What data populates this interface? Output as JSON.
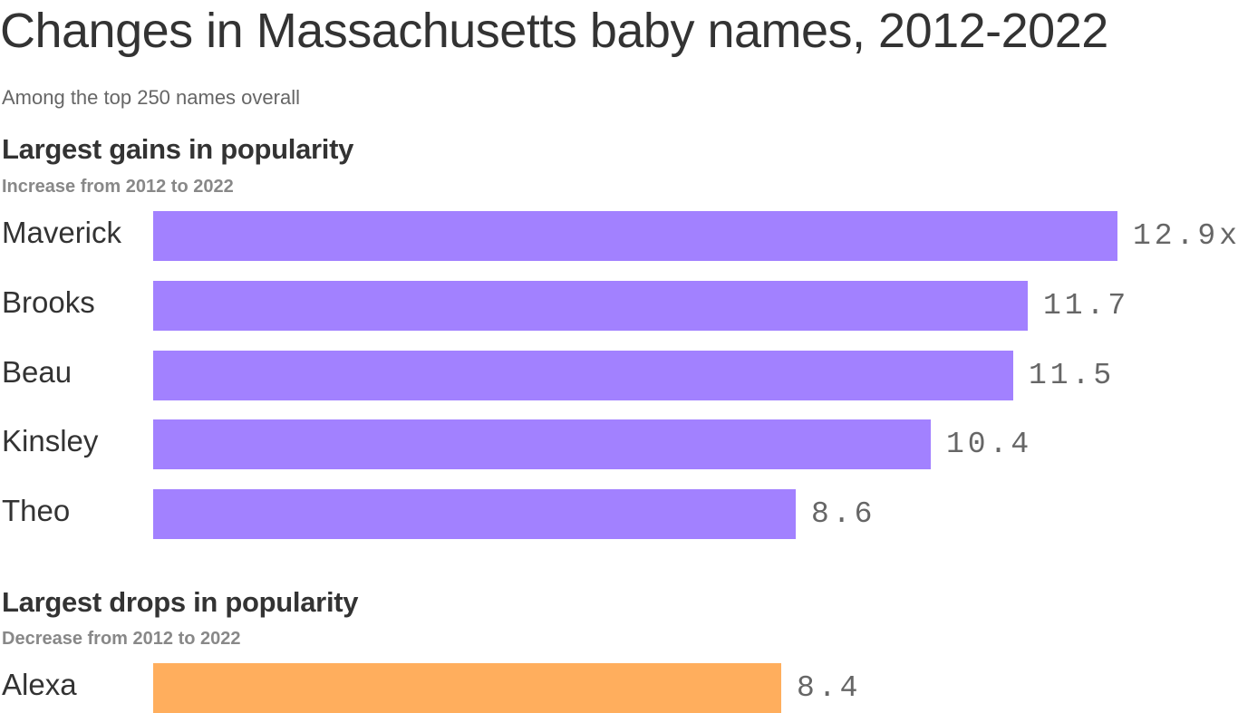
{
  "title": "Changes in Massachusetts baby names, 2012-2022",
  "subtitle": "Among the top 250 names overall",
  "gains": {
    "title": "Largest gains in popularity",
    "subtitle": "Increase from 2012 to 2022",
    "color": "#a281ff",
    "rows": [
      {
        "name": "Maverick",
        "value": 12.9,
        "label": "12.9x"
      },
      {
        "name": "Brooks",
        "value": 11.7,
        "label": "11.7"
      },
      {
        "name": "Beau",
        "value": 11.5,
        "label": "11.5"
      },
      {
        "name": "Kinsley",
        "value": 10.4,
        "label": "10.4"
      },
      {
        "name": "Theo",
        "value": 8.6,
        "label": "8.6"
      }
    ]
  },
  "drops": {
    "title": "Largest drops in popularity",
    "subtitle": "Decrease from 2012 to 2022",
    "color": "#ffae5d",
    "rows": [
      {
        "name": "Alexa",
        "value": 8.4,
        "label": "8.4"
      }
    ]
  },
  "chart_data": [
    {
      "type": "bar",
      "orientation": "horizontal",
      "title": "Largest gains in popularity",
      "subtitle": "Increase from 2012 to 2022",
      "categories": [
        "Maverick",
        "Brooks",
        "Beau",
        "Kinsley",
        "Theo"
      ],
      "values": [
        12.9,
        11.7,
        11.5,
        10.4,
        8.6
      ],
      "unit": "x",
      "color": "#a281ff",
      "grid": false,
      "xlabel": "",
      "ylabel": ""
    },
    {
      "type": "bar",
      "orientation": "horizontal",
      "title": "Largest drops in popularity",
      "subtitle": "Decrease from 2012 to 2022",
      "categories": [
        "Alexa"
      ],
      "values": [
        8.4
      ],
      "unit": "x",
      "color": "#ffae5d",
      "grid": false,
      "xlabel": "",
      "ylabel": ""
    }
  ]
}
